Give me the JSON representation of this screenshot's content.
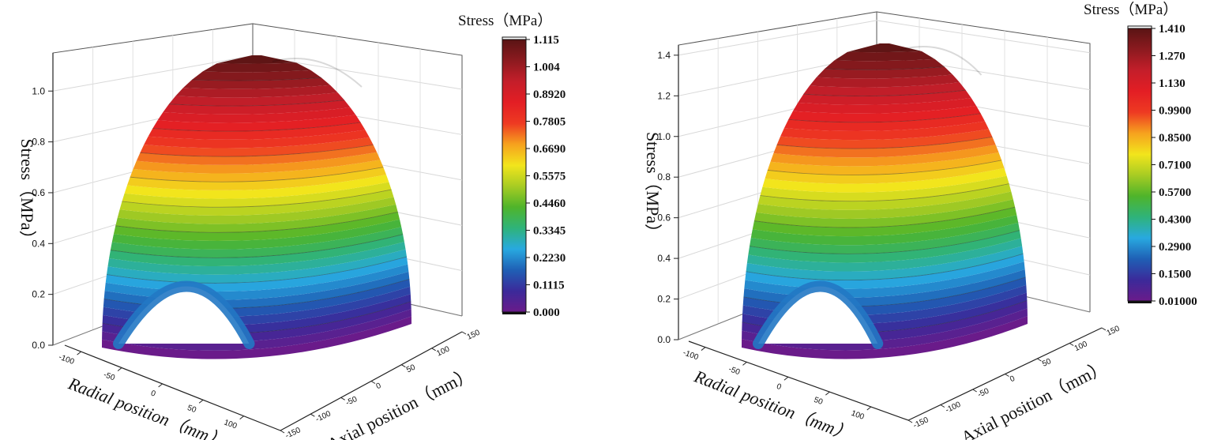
{
  "chart_data": [
    {
      "type": "surface3d",
      "zlabel": "Stress（MPa）",
      "xlabel": "Radial position（mm）",
      "ylabel": "Axial position（mm）",
      "x_ticks": [
        "-100",
        "-50",
        "0",
        "50",
        "100"
      ],
      "y_ticks": [
        "-150",
        "-100",
        "-50",
        "0",
        "50",
        "100",
        "150"
      ],
      "z_ticks": [
        "0.0",
        "0.2",
        "0.4",
        "0.6",
        "0.8",
        "1.0"
      ],
      "zlim": [
        0,
        1.15
      ],
      "z_peak": 1.115,
      "colorbar": {
        "title": "Stress（MPa）",
        "labels": [
          "1.115",
          "1.004",
          "0.8920",
          "0.7805",
          "0.6690",
          "0.5575",
          "0.4460",
          "0.3345",
          "0.2230",
          "0.1115",
          "0.000"
        ]
      }
    },
    {
      "type": "surface3d",
      "zlabel": "Stress（MPa）",
      "xlabel": "Radial position（mm）",
      "ylabel": "Axial position（mm）",
      "x_ticks": [
        "-100",
        "-50",
        "0",
        "50",
        "100"
      ],
      "y_ticks": [
        "-150",
        "-100",
        "-50",
        "0",
        "50",
        "100",
        "150"
      ],
      "z_ticks": [
        "0.0",
        "0.2",
        "0.4",
        "0.6",
        "0.8",
        "1.0",
        "1.2",
        "1.4"
      ],
      "zlim": [
        0,
        1.45
      ],
      "z_peak": 1.41,
      "colorbar": {
        "title": "Stress（MPa）",
        "labels": [
          "1.410",
          "1.270",
          "1.130",
          "0.9900",
          "0.8500",
          "0.7100",
          "0.5700",
          "0.4300",
          "0.2900",
          "0.1500",
          "0.01000"
        ]
      }
    }
  ],
  "colormap": [
    "#6a1b8a",
    "#3b2a9a",
    "#1f5fb5",
    "#28a9e0",
    "#2fb37a",
    "#4fb42a",
    "#a8cc23",
    "#f2e51c",
    "#f6a21e",
    "#ee3a22",
    "#e31e24",
    "#c41e2a",
    "#8c1a1f",
    "#5a1414"
  ]
}
